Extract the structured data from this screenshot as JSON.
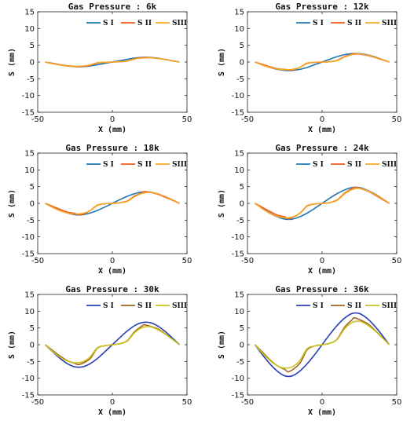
{
  "chart_data": [
    {
      "type": "line",
      "title": "Gas Pressure : 6k",
      "xlabel": "X (mm)",
      "ylabel": "S (mm)",
      "xlim": [
        -50,
        50
      ],
      "ylim": [
        -15,
        15
      ],
      "xticks": [
        -50,
        0,
        50
      ],
      "yticks": [
        -15,
        -10,
        -5,
        0,
        5,
        10,
        15
      ],
      "legend_position": "top-right",
      "series": [
        {
          "name": "S I",
          "color": "#1f77b4",
          "x": [
            -45,
            -40,
            -35,
            -30,
            -25,
            -20,
            -15,
            -10,
            -5,
            0,
            5,
            10,
            15,
            20,
            25,
            30,
            35,
            40,
            45
          ],
          "y": [
            0,
            -0.4,
            -0.8,
            -1.2,
            -1.4,
            -1.4,
            -1.2,
            -0.8,
            -0.4,
            0,
            0.4,
            0.8,
            1.2,
            1.4,
            1.4,
            1.2,
            0.8,
            0.4,
            0
          ]
        },
        {
          "name": "S II",
          "color": "#f05a1a",
          "x": [
            -45,
            -40,
            -35,
            -30,
            -25,
            -22,
            -15,
            -10,
            -5,
            0,
            5,
            10,
            15,
            20,
            23,
            30,
            35,
            40,
            45
          ],
          "y": [
            0,
            -0.4,
            -0.8,
            -1.1,
            -1.3,
            -1.4,
            -1.0,
            -0.3,
            -0.1,
            0,
            0.1,
            0.3,
            1.0,
            1.3,
            1.4,
            1.1,
            0.8,
            0.4,
            0
          ]
        },
        {
          "name": "SIII",
          "color": "#f5a623",
          "x": [
            -45,
            -40,
            -35,
            -30,
            -25,
            -20,
            -15,
            -10,
            -5,
            0,
            5,
            10,
            15,
            20,
            25,
            30,
            35,
            40,
            45
          ],
          "y": [
            0,
            -0.5,
            -0.9,
            -1.2,
            -1.3,
            -1.2,
            -0.9,
            -0.2,
            -0.1,
            0,
            0.1,
            0.3,
            0.9,
            1.2,
            1.3,
            1.1,
            0.8,
            0.4,
            0
          ]
        }
      ]
    },
    {
      "type": "line",
      "title": "Gas Pressure : 12k",
      "xlabel": "X (mm)",
      "ylabel": "S (mm)",
      "xlim": [
        -50,
        50
      ],
      "ylim": [
        -15,
        15
      ],
      "xticks": [
        -50,
        0,
        50
      ],
      "yticks": [
        -15,
        -10,
        -5,
        0,
        5,
        10,
        15
      ],
      "legend_position": "top-right",
      "series": [
        {
          "name": "S I",
          "color": "#1f77b4",
          "x": [
            -45,
            -40,
            -35,
            -30,
            -25,
            -20,
            -15,
            -10,
            -5,
            0,
            5,
            10,
            15,
            20,
            25,
            30,
            35,
            40,
            45
          ],
          "y": [
            0,
            -0.8,
            -1.6,
            -2.2,
            -2.5,
            -2.5,
            -2.2,
            -1.6,
            -0.8,
            0,
            0.8,
            1.6,
            2.2,
            2.5,
            2.5,
            2.2,
            1.6,
            0.8,
            0
          ]
        },
        {
          "name": "S II",
          "color": "#f05a1a",
          "x": [
            -45,
            -40,
            -35,
            -30,
            -25,
            -20,
            -15,
            -10,
            -5,
            0,
            5,
            10,
            15,
            20,
            22,
            30,
            35,
            40,
            45
          ],
          "y": [
            0,
            -0.7,
            -1.4,
            -2.0,
            -2.2,
            -2.4,
            -1.6,
            -0.4,
            -0.1,
            0,
            0.1,
            0.5,
            1.6,
            2.3,
            2.5,
            2.0,
            1.4,
            0.7,
            0
          ]
        },
        {
          "name": "SIII",
          "color": "#f5a623",
          "x": [
            -45,
            -40,
            -35,
            -30,
            -25,
            -20,
            -15,
            -10,
            -5,
            0,
            5,
            10,
            15,
            20,
            25,
            30,
            35,
            40,
            45
          ],
          "y": [
            0,
            -0.9,
            -1.6,
            -2.1,
            -2.3,
            -2.2,
            -1.6,
            -0.3,
            -0.1,
            0,
            0.1,
            0.4,
            1.5,
            2.2,
            2.4,
            2.1,
            1.5,
            0.8,
            0
          ]
        }
      ]
    },
    {
      "type": "line",
      "title": "Gas Pressure : 18k",
      "xlabel": "X (mm)",
      "ylabel": "S (mm)",
      "xlim": [
        -50,
        50
      ],
      "ylim": [
        -15,
        15
      ],
      "xticks": [
        -50,
        0,
        50
      ],
      "yticks": [
        -15,
        -10,
        -5,
        0,
        5,
        10,
        15
      ],
      "legend_position": "top-right",
      "series": [
        {
          "name": "S I",
          "color": "#1f77b4",
          "x": [
            -45,
            -40,
            -35,
            -30,
            -25,
            -20,
            -15,
            -10,
            -5,
            0,
            5,
            10,
            15,
            20,
            25,
            30,
            35,
            40,
            45
          ],
          "y": [
            0,
            -1.1,
            -2.1,
            -2.9,
            -3.4,
            -3.4,
            -2.9,
            -2.1,
            -1.1,
            0,
            1.1,
            2.1,
            2.9,
            3.4,
            3.4,
            2.9,
            2.1,
            1.1,
            0
          ]
        },
        {
          "name": "S II",
          "color": "#f05a1a",
          "x": [
            -45,
            -40,
            -35,
            -30,
            -25,
            -21,
            -15,
            -10,
            -5,
            0,
            5,
            10,
            15,
            20,
            22,
            30,
            35,
            40,
            45
          ],
          "y": [
            0,
            -0.9,
            -1.8,
            -2.6,
            -3.0,
            -3.4,
            -2.2,
            -0.6,
            -0.1,
            0,
            0.2,
            0.7,
            2.2,
            3.2,
            3.5,
            2.8,
            1.9,
            1.0,
            0
          ]
        },
        {
          "name": "SIII",
          "color": "#f5a623",
          "x": [
            -45,
            -40,
            -35,
            -30,
            -25,
            -20,
            -15,
            -10,
            -5,
            0,
            5,
            10,
            15,
            20,
            25,
            30,
            35,
            40,
            45
          ],
          "y": [
            0,
            -1.2,
            -2.2,
            -2.9,
            -3.2,
            -3.0,
            -2.2,
            -0.5,
            -0.1,
            0,
            0.2,
            0.6,
            2.0,
            3.0,
            3.3,
            2.9,
            2.1,
            1.1,
            0
          ]
        }
      ]
    },
    {
      "type": "line",
      "title": "Gas Pressure : 24k",
      "xlabel": "X (mm)",
      "ylabel": "S (mm)",
      "xlim": [
        -50,
        50
      ],
      "ylim": [
        -15,
        15
      ],
      "xticks": [
        -50,
        0,
        50
      ],
      "yticks": [
        -15,
        -10,
        -5,
        0,
        5,
        10,
        15
      ],
      "legend_position": "top-right",
      "series": [
        {
          "name": "S I",
          "color": "#1f77b4",
          "x": [
            -45,
            -40,
            -35,
            -30,
            -25,
            -20,
            -15,
            -10,
            -5,
            0,
            5,
            10,
            15,
            20,
            25,
            30,
            35,
            40,
            45
          ],
          "y": [
            0,
            -1.5,
            -2.9,
            -4.0,
            -4.7,
            -4.7,
            -4.0,
            -2.9,
            -1.5,
            0,
            1.5,
            2.9,
            4.0,
            4.7,
            4.7,
            4.0,
            2.9,
            1.5,
            0
          ]
        },
        {
          "name": "S II",
          "color": "#f05a1a",
          "x": [
            -45,
            -40,
            -35,
            -30,
            -25,
            -22,
            -15,
            -10,
            -5,
            0,
            5,
            10,
            15,
            20,
            22,
            30,
            35,
            40,
            45
          ],
          "y": [
            0,
            -1.2,
            -2.4,
            -3.5,
            -4.0,
            -4.6,
            -3.0,
            -0.8,
            -0.2,
            0,
            0.2,
            1.0,
            3.0,
            4.4,
            4.8,
            3.8,
            2.6,
            1.3,
            0
          ]
        },
        {
          "name": "SIII",
          "color": "#f5a623",
          "x": [
            -45,
            -40,
            -35,
            -30,
            -25,
            -20,
            -15,
            -10,
            -5,
            0,
            5,
            10,
            15,
            20,
            25,
            30,
            35,
            40,
            45
          ],
          "y": [
            0,
            -1.6,
            -3.0,
            -3.9,
            -4.3,
            -4.1,
            -3.0,
            -0.7,
            -0.2,
            0,
            0.2,
            0.9,
            2.8,
            4.1,
            4.5,
            3.9,
            2.8,
            1.5,
            0
          ]
        }
      ]
    },
    {
      "type": "line",
      "title": "Gas Pressure : 30k",
      "xlabel": "X (mm)",
      "ylabel": "S (mm)",
      "xlim": [
        -50,
        50
      ],
      "ylim": [
        -15,
        15
      ],
      "xticks": [
        -50,
        0,
        50
      ],
      "yticks": [
        -15,
        -10,
        -5,
        0,
        5,
        10,
        15
      ],
      "legend_position": "top-right",
      "series": [
        {
          "name": "S I",
          "color": "#2b3fb8",
          "x": [
            -45,
            -40,
            -35,
            -30,
            -25,
            -20,
            -15,
            -10,
            -5,
            0,
            5,
            10,
            15,
            20,
            25,
            30,
            35,
            40,
            45
          ],
          "y": [
            0,
            -2.1,
            -4.1,
            -5.7,
            -6.6,
            -6.6,
            -5.7,
            -4.1,
            -2.1,
            0,
            2.1,
            4.1,
            5.7,
            6.6,
            6.6,
            5.7,
            4.1,
            2.1,
            0
          ]
        },
        {
          "name": "S II",
          "color": "#a0661c",
          "x": [
            -45,
            -40,
            -35,
            -30,
            -25,
            -22,
            -15,
            -10,
            -5,
            0,
            5,
            10,
            15,
            20,
            22,
            30,
            35,
            40,
            45
          ],
          "y": [
            0,
            -1.7,
            -3.4,
            -4.8,
            -5.6,
            -5.9,
            -4.2,
            -1.0,
            -0.3,
            0,
            0.3,
            1.2,
            3.9,
            5.6,
            5.9,
            4.8,
            3.4,
            1.7,
            0
          ]
        },
        {
          "name": "SIII",
          "color": "#c8c41a",
          "x": [
            -45,
            -40,
            -35,
            -30,
            -25,
            -20,
            -15,
            -10,
            -5,
            0,
            5,
            10,
            15,
            20,
            25,
            30,
            35,
            40,
            45
          ],
          "y": [
            0,
            -2.0,
            -3.7,
            -4.9,
            -5.4,
            -5.1,
            -3.7,
            -0.9,
            -0.3,
            0,
            0.3,
            1.1,
            3.6,
            5.1,
            5.4,
            4.6,
            3.3,
            1.7,
            0
          ]
        }
      ]
    },
    {
      "type": "line",
      "title": "Gas Pressure : 36k",
      "xlabel": "X (mm)",
      "ylabel": "S (mm)",
      "xlim": [
        -50,
        50
      ],
      "ylim": [
        -15,
        15
      ],
      "xticks": [
        -50,
        0,
        50
      ],
      "yticks": [
        -15,
        -10,
        -5,
        0,
        5,
        10,
        15
      ],
      "legend_position": "top-right",
      "series": [
        {
          "name": "S I",
          "color": "#2b3fb8",
          "x": [
            -45,
            -40,
            -35,
            -30,
            -25,
            -20,
            -15,
            -10,
            -5,
            0,
            5,
            10,
            15,
            20,
            25,
            30,
            35,
            40,
            45
          ],
          "y": [
            0,
            -3.0,
            -5.7,
            -7.9,
            -9.3,
            -9.3,
            -7.9,
            -5.7,
            -3.0,
            0,
            3.0,
            5.7,
            7.9,
            9.3,
            9.3,
            7.9,
            5.7,
            3.0,
            0
          ]
        },
        {
          "name": "S II",
          "color": "#a0661c",
          "x": [
            -45,
            -40,
            -35,
            -30,
            -25,
            -22,
            -15,
            -10,
            -5,
            0,
            5,
            10,
            15,
            20,
            22,
            30,
            35,
            40,
            45
          ],
          "y": [
            0,
            -2.2,
            -4.5,
            -6.3,
            -7.4,
            -8.0,
            -5.6,
            -1.5,
            -0.4,
            0,
            0.4,
            1.6,
            5.2,
            7.4,
            8.0,
            6.4,
            4.5,
            2.3,
            0
          ]
        },
        {
          "name": "SIII",
          "color": "#c8c41a",
          "x": [
            -45,
            -40,
            -35,
            -30,
            -25,
            -20,
            -15,
            -10,
            -5,
            0,
            5,
            10,
            15,
            20,
            25,
            30,
            35,
            40,
            45
          ],
          "y": [
            0,
            -2.5,
            -4.7,
            -6.3,
            -7.0,
            -6.6,
            -4.8,
            -1.2,
            -0.4,
            0,
            0.4,
            1.5,
            4.7,
            6.6,
            7.0,
            6.0,
            4.3,
            2.2,
            0
          ]
        }
      ]
    }
  ]
}
